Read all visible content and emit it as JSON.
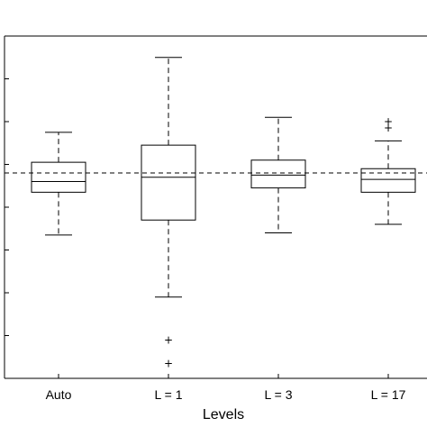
{
  "chart_data": {
    "type": "box",
    "xlabel": "Levels",
    "ylabel": "",
    "categories": [
      "Auto",
      "L = 1",
      "L = 3",
      "L = 17"
    ],
    "ylim": [
      0,
      8
    ],
    "yticks": [
      0,
      1,
      2,
      3,
      4,
      5,
      6,
      7,
      8
    ],
    "reference_line": 4.8,
    "boxes": [
      {
        "label": "Auto",
        "q1": 4.35,
        "median": 4.6,
        "q3": 5.05,
        "whisker_low": 3.35,
        "whisker_high": 5.75,
        "outliers": []
      },
      {
        "label": "L = 1",
        "q1": 3.7,
        "median": 4.7,
        "q3": 5.45,
        "whisker_low": 1.9,
        "whisker_high": 7.5,
        "outliers": [
          0.9,
          0.35
        ]
      },
      {
        "label": "L = 3",
        "q1": 4.45,
        "median": 4.75,
        "q3": 5.1,
        "whisker_low": 3.4,
        "whisker_high": 6.1,
        "outliers": []
      },
      {
        "label": "L = 17",
        "q1": 4.35,
        "median": 4.65,
        "q3": 4.9,
        "whisker_low": 3.6,
        "whisker_high": 5.55,
        "outliers": [
          5.85,
          6.0
        ]
      }
    ]
  }
}
